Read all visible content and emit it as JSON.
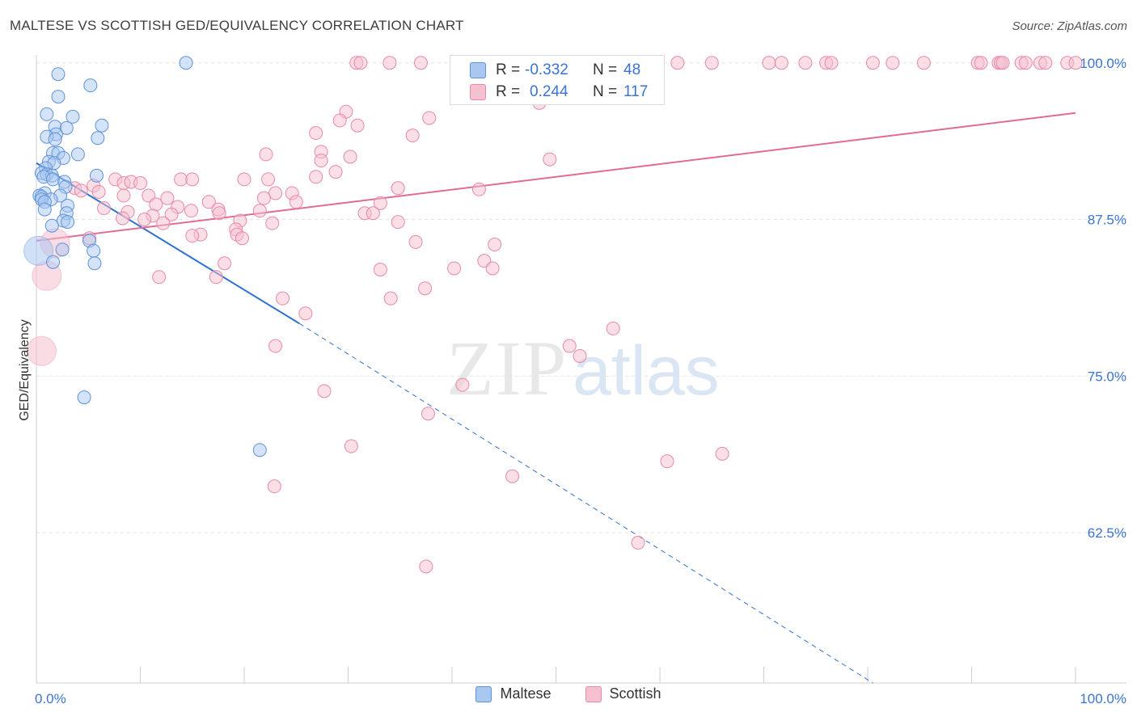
{
  "title": "MALTESE VS SCOTTISH GED/EQUIVALENCY CORRELATION CHART",
  "source": "Source: ZipAtlas.com",
  "watermark": {
    "zip": "ZIP",
    "atlas": "atlas"
  },
  "colors": {
    "maltese_fill": "#a9c7f0",
    "maltese_stroke": "#5d93da",
    "maltese_line": "#2f72d0",
    "scottish_fill": "#f5c0d0",
    "scottish_stroke": "#e889a8",
    "scottish_line": "#e06c96",
    "axis_label": "#3a74d0",
    "grid": "#e3e3e3"
  },
  "stats": {
    "rows": [
      {
        "r_label": "R =",
        "r_value": "-0.332",
        "n_label": "N =",
        "n_value": "48",
        "series": "Maltese"
      },
      {
        "r_label": "R =",
        "r_value": "0.244",
        "n_label": "N =",
        "n_value": "117",
        "series": "Scottish"
      }
    ]
  },
  "legend": [
    {
      "label": "Maltese",
      "series": "Maltese"
    },
    {
      "label": "Scottish",
      "series": "Scottish"
    }
  ],
  "chart_data": {
    "type": "scatter",
    "title": "MALTESE VS SCOTTISH GED/EQUIVALENCY CORRELATION CHART",
    "xlabel": "",
    "ylabel": "GED/Equivalency",
    "xlim": [
      0,
      100
    ],
    "ylim": [
      50.5,
      100.5
    ],
    "x_tick_labels": [
      {
        "value": 0,
        "label": "0.0%"
      },
      {
        "value": 100,
        "label": "100.0%"
      }
    ],
    "y_tick_labels": [
      {
        "value": 100,
        "label": "100.0%"
      },
      {
        "value": 87.5,
        "label": "87.5%"
      },
      {
        "value": 75,
        "label": "75.0%"
      },
      {
        "value": 62.5,
        "label": "62.5%"
      }
    ],
    "x_minor_ticks": [
      0,
      10,
      20,
      30,
      40,
      50,
      60,
      70,
      80,
      90,
      100
    ],
    "grid": true,
    "legend_position": "bottom-center",
    "series": [
      {
        "name": "Maltese",
        "points": [
          [
            14.4,
            100
          ],
          [
            2.1,
            99.1
          ],
          [
            5.2,
            98.2
          ],
          [
            2.1,
            97.3
          ],
          [
            1.0,
            95.9
          ],
          [
            3.5,
            95.7
          ],
          [
            6.3,
            95.0
          ],
          [
            1.8,
            94.9
          ],
          [
            2.9,
            94.8
          ],
          [
            1.9,
            94.3
          ],
          [
            1.0,
            94.1
          ],
          [
            5.9,
            94.0
          ],
          [
            1.8,
            93.9
          ],
          [
            1.6,
            92.8
          ],
          [
            2.1,
            92.8
          ],
          [
            4.0,
            92.7
          ],
          [
            2.6,
            92.4
          ],
          [
            1.2,
            92.1
          ],
          [
            1.7,
            92.0
          ],
          [
            0.9,
            91.6
          ],
          [
            0.5,
            91.2
          ],
          [
            1.0,
            91.1
          ],
          [
            1.5,
            91.0
          ],
          [
            5.8,
            91.0
          ],
          [
            0.7,
            90.9
          ],
          [
            1.6,
            90.7
          ],
          [
            2.7,
            90.5
          ],
          [
            2.8,
            90.1
          ],
          [
            0.8,
            89.6
          ],
          [
            2.3,
            89.4
          ],
          [
            0.3,
            89.4
          ],
          [
            0.5,
            89.3
          ],
          [
            1.4,
            89.1
          ],
          [
            0.5,
            89.1
          ],
          [
            0.8,
            88.9
          ],
          [
            3.0,
            88.6
          ],
          [
            0.8,
            88.3
          ],
          [
            2.9,
            88.0
          ],
          [
            2.6,
            87.4
          ],
          [
            3.0,
            87.3
          ],
          [
            1.5,
            87.0
          ],
          [
            5.1,
            85.8
          ],
          [
            2.5,
            85.1
          ],
          [
            5.5,
            85.0
          ],
          [
            1.6,
            84.1
          ],
          [
            5.6,
            84.0
          ],
          [
            4.6,
            73.3
          ],
          [
            21.5,
            69.1
          ]
        ],
        "big_points": [
          [
            0.2,
            85.0
          ]
        ],
        "trend": {
          "x": [
            0,
            25.3
          ],
          "y": [
            92.0,
            79.2
          ]
        },
        "trend_extension": {
          "x": [
            25.3,
            80.5
          ],
          "y": [
            79.2,
            50.5
          ]
        }
      },
      {
        "name": "Scottish",
        "points": [
          [
            30.8,
            100
          ],
          [
            31.2,
            100
          ],
          [
            34.0,
            100
          ],
          [
            37.0,
            100
          ],
          [
            41.0,
            100
          ],
          [
            43.3,
            100
          ],
          [
            45.6,
            100
          ],
          [
            49.6,
            100
          ],
          [
            53.7,
            100
          ],
          [
            56.5,
            100
          ],
          [
            61.7,
            100
          ],
          [
            65.0,
            100
          ],
          [
            70.5,
            100
          ],
          [
            71.7,
            100
          ],
          [
            74.0,
            100
          ],
          [
            76.0,
            100
          ],
          [
            76.5,
            100
          ],
          [
            80.5,
            100
          ],
          [
            82.4,
            100
          ],
          [
            85.4,
            100
          ],
          [
            90.6,
            100
          ],
          [
            90.9,
            100
          ],
          [
            92.6,
            100
          ],
          [
            92.8,
            100
          ],
          [
            93.0,
            100
          ],
          [
            94.8,
            100
          ],
          [
            95.2,
            100
          ],
          [
            96.6,
            100
          ],
          [
            97.1,
            100
          ],
          [
            99.2,
            100
          ],
          [
            100.0,
            100
          ],
          [
            48.4,
            96.8
          ],
          [
            29.8,
            96.1
          ],
          [
            37.8,
            95.6
          ],
          [
            29.2,
            95.4
          ],
          [
            30.9,
            95.0
          ],
          [
            26.9,
            94.4
          ],
          [
            36.2,
            94.2
          ],
          [
            27.4,
            92.9
          ],
          [
            22.1,
            92.7
          ],
          [
            30.2,
            92.5
          ],
          [
            27.4,
            92.2
          ],
          [
            49.4,
            92.3
          ],
          [
            28.8,
            91.3
          ],
          [
            26.9,
            90.9
          ],
          [
            13.9,
            90.7
          ],
          [
            15.0,
            90.7
          ],
          [
            20.0,
            90.7
          ],
          [
            22.3,
            90.7
          ],
          [
            7.6,
            90.7
          ],
          [
            8.4,
            90.4
          ],
          [
            9.1,
            90.5
          ],
          [
            10.0,
            90.4
          ],
          [
            5.5,
            90.2
          ],
          [
            34.8,
            90.0
          ],
          [
            42.6,
            89.9
          ],
          [
            3.7,
            90.0
          ],
          [
            4.3,
            89.8
          ],
          [
            6.0,
            89.7
          ],
          [
            23.0,
            89.6
          ],
          [
            8.4,
            89.4
          ],
          [
            24.6,
            89.6
          ],
          [
            10.8,
            89.4
          ],
          [
            21.9,
            89.2
          ],
          [
            12.6,
            89.2
          ],
          [
            16.6,
            88.9
          ],
          [
            25.0,
            88.9
          ],
          [
            33.1,
            88.8
          ],
          [
            11.5,
            88.7
          ],
          [
            13.6,
            88.5
          ],
          [
            6.5,
            88.4
          ],
          [
            17.5,
            88.3
          ],
          [
            14.9,
            88.2
          ],
          [
            21.5,
            88.2
          ],
          [
            8.8,
            88.1
          ],
          [
            31.6,
            88.0
          ],
          [
            32.4,
            88.0
          ],
          [
            17.6,
            88.0
          ],
          [
            13.0,
            87.9
          ],
          [
            11.2,
            87.8
          ],
          [
            8.3,
            87.6
          ],
          [
            10.4,
            87.5
          ],
          [
            19.6,
            87.4
          ],
          [
            34.8,
            87.3
          ],
          [
            12.2,
            87.2
          ],
          [
            22.7,
            87.2
          ],
          [
            19.2,
            86.7
          ],
          [
            19.3,
            86.3
          ],
          [
            15.8,
            86.3
          ],
          [
            15.0,
            86.2
          ],
          [
            5.1,
            86.0
          ],
          [
            19.8,
            86.0
          ],
          [
            36.5,
            85.7
          ],
          [
            44.1,
            85.5
          ],
          [
            43.1,
            84.2
          ],
          [
            18.1,
            84.0
          ],
          [
            40.2,
            83.6
          ],
          [
            43.9,
            83.6
          ],
          [
            33.1,
            83.5
          ],
          [
            11.8,
            82.9
          ],
          [
            17.3,
            82.9
          ],
          [
            37.4,
            82.0
          ],
          [
            34.1,
            81.2
          ],
          [
            23.7,
            81.2
          ],
          [
            25.9,
            80.0
          ],
          [
            55.5,
            78.8
          ],
          [
            23.0,
            77.4
          ],
          [
            51.3,
            77.4
          ],
          [
            52.3,
            76.6
          ],
          [
            41.0,
            74.3
          ],
          [
            27.7,
            73.8
          ],
          [
            37.7,
            72.0
          ],
          [
            30.3,
            69.4
          ],
          [
            66.0,
            68.8
          ],
          [
            60.7,
            68.2
          ],
          [
            45.8,
            67.0
          ],
          [
            22.9,
            66.2
          ],
          [
            57.9,
            61.7
          ],
          [
            37.5,
            59.8
          ]
        ],
        "big_points": [
          [
            1.8,
            85.6
          ],
          [
            1.0,
            83.0
          ],
          [
            0.5,
            77.0
          ]
        ],
        "trend": {
          "x": [
            0,
            100
          ],
          "y": [
            85.8,
            96.0
          ]
        }
      }
    ]
  }
}
